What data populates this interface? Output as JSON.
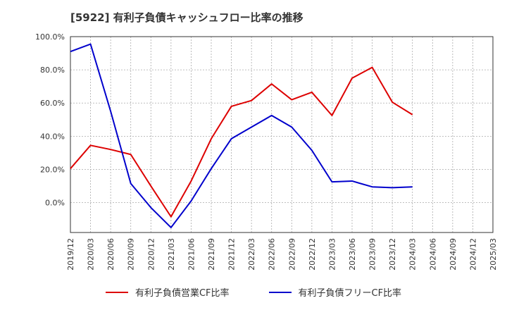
{
  "chart_data": {
    "type": "line",
    "title": "[5922]  有利子負債キャッシュフロー比率の推移",
    "x": [
      "2019/12",
      "2020/03",
      "2020/06",
      "2020/09",
      "2020/12",
      "2021/03",
      "2021/06",
      "2021/09",
      "2021/12",
      "2022/03",
      "2022/06",
      "2022/09",
      "2022/12",
      "2023/03",
      "2023/06",
      "2023/09",
      "2023/12",
      "2024/03",
      "2024/06",
      "2024/09",
      "2024/12",
      "2025/03"
    ],
    "y_ticks": [
      "100.0%",
      "80.0%",
      "60.0%",
      "40.0%",
      "20.0%",
      "0.0%"
    ],
    "ylim": [
      -18,
      100
    ],
    "grid": true,
    "legend_position": "bottom",
    "series": [
      {
        "name": "有利子負債営業CF比率",
        "color": "#dd0000",
        "points": [
          [
            "2019/12",
            20.5
          ],
          [
            "2020/03",
            34.5
          ],
          [
            "2020/06",
            32
          ],
          [
            "2020/09",
            29
          ],
          [
            "2020/12",
            10
          ],
          [
            "2021/03",
            -8.5
          ],
          [
            "2021/06",
            13
          ],
          [
            "2021/09",
            38.5
          ],
          [
            "2021/12",
            58
          ],
          [
            "2022/03",
            61.5
          ],
          [
            "2022/06",
            71.5
          ],
          [
            "2022/09",
            62
          ],
          [
            "2022/12",
            66.5
          ],
          [
            "2023/03",
            52.5
          ],
          [
            "2023/06",
            75
          ],
          [
            "2023/09",
            81.5
          ],
          [
            "2023/12",
            60.5
          ],
          [
            "2024/03",
            53
          ]
        ]
      },
      {
        "name": "有利子負債フリーCF比率",
        "color": "#0000cc",
        "points": [
          [
            "2019/12",
            91
          ],
          [
            "2020/03",
            95.5
          ],
          [
            "2020/06",
            55
          ],
          [
            "2020/09",
            11.5
          ],
          [
            "2020/12",
            -3
          ],
          [
            "2021/03",
            -15
          ],
          [
            "2021/06",
            1
          ],
          [
            "2021/09",
            20.5
          ],
          [
            "2021/12",
            38.5
          ],
          [
            "2022/03",
            45.5
          ],
          [
            "2022/06",
            52.5
          ],
          [
            "2022/09",
            45.5
          ],
          [
            "2022/12",
            31.5
          ],
          [
            "2023/03",
            12.5
          ],
          [
            "2023/06",
            13
          ],
          [
            "2023/09",
            9.5
          ],
          [
            "2023/12",
            9
          ],
          [
            "2024/03",
            9.5
          ]
        ]
      }
    ]
  }
}
